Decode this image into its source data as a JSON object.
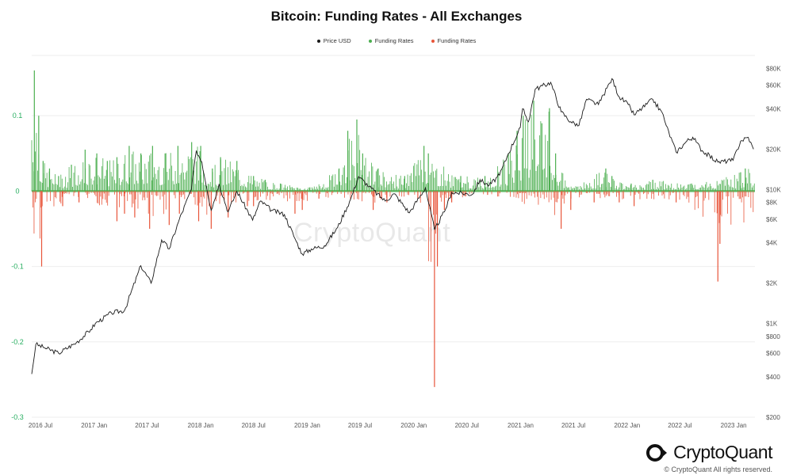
{
  "colors": {
    "price": "#1a1a1a",
    "positive": "#4caf50",
    "negative": "#e8553a",
    "grid": "#eeeeee",
    "leftTick": "#27ae60",
    "rightTick": "#555555"
  },
  "brand": {
    "name": "CryptoQuant",
    "copyright": "© CryptoQuant All rights reserved.",
    "watermark": "CryptoQuant",
    "icon": "cryptoquant-logo-icon"
  },
  "chart_data": {
    "type": "line",
    "title": "Bitcoin: Funding Rates - All Exchanges",
    "legend": {
      "placement": "top-center",
      "entries": [
        {
          "name": "Price USD",
          "color": "#1a1a1a"
        },
        {
          "name": "Funding Rates",
          "color": "#4caf50"
        },
        {
          "name": "Funding Rates",
          "color": "#e8553a"
        }
      ]
    },
    "x_ticks": [
      "2016 Jul",
      "2017 Jan",
      "2017 Jul",
      "2018 Jan",
      "2018 Jul",
      "2019 Jan",
      "2019 Jul",
      "2020 Jan",
      "2020 Jul",
      "2021 Jan",
      "2021 Jul",
      "2022 Jan",
      "2022 Jul",
      "2023 Jan"
    ],
    "x_range": [
      "2016-06-01",
      "2023-03-15"
    ],
    "y_left": {
      "ticks": [
        "0.1",
        "0",
        "-0.1",
        "-0.2",
        "-0.3"
      ],
      "values": [
        0.1,
        0,
        -0.1,
        -0.2,
        -0.3
      ],
      "range": [
        -0.3,
        0.18
      ]
    },
    "y_right": {
      "scale": "log",
      "ticks": [
        "$80K",
        "$60K",
        "$40K",
        "$20K",
        "$10K",
        "$8K",
        "$6K",
        "$4K",
        "$2K",
        "$1K",
        "$800",
        "$600",
        "$400",
        "$200"
      ],
      "values": [
        80000,
        60000,
        40000,
        20000,
        10000,
        8000,
        6000,
        4000,
        2000,
        1000,
        800,
        600,
        400,
        200
      ],
      "range": [
        200,
        100000
      ]
    },
    "grid": true,
    "series": [
      {
        "name": "Price USD",
        "axis": "right",
        "points": [
          [
            "2016-06-01",
            420
          ],
          [
            "2016-06-15",
            700
          ],
          [
            "2016-07-15",
            660
          ],
          [
            "2016-09-01",
            600
          ],
          [
            "2016-11-01",
            720
          ],
          [
            "2016-12-20",
            900
          ],
          [
            "2017-01-05",
            1000
          ],
          [
            "2017-03-01",
            1200
          ],
          [
            "2017-04-15",
            1250
          ],
          [
            "2017-06-10",
            2700
          ],
          [
            "2017-07-15",
            2000
          ],
          [
            "2017-08-20",
            4200
          ],
          [
            "2017-09-15",
            3600
          ],
          [
            "2017-10-20",
            6000
          ],
          [
            "2017-11-30",
            10000
          ],
          [
            "2017-12-17",
            19500
          ],
          [
            "2018-01-05",
            16000
          ],
          [
            "2018-02-06",
            7000
          ],
          [
            "2018-03-05",
            11000
          ],
          [
            "2018-04-05",
            6800
          ],
          [
            "2018-05-05",
            9700
          ],
          [
            "2018-06-28",
            5900
          ],
          [
            "2018-07-25",
            8200
          ],
          [
            "2018-09-01",
            7000
          ],
          [
            "2018-10-15",
            6500
          ],
          [
            "2018-11-20",
            4300
          ],
          [
            "2018-12-15",
            3300
          ],
          [
            "2019-01-15",
            3600
          ],
          [
            "2019-03-01",
            3800
          ],
          [
            "2019-04-15",
            5200
          ],
          [
            "2019-05-30",
            8500
          ],
          [
            "2019-06-26",
            12500
          ],
          [
            "2019-08-01",
            10500
          ],
          [
            "2019-09-25",
            8200
          ],
          [
            "2019-10-26",
            9300
          ],
          [
            "2019-12-17",
            6700
          ],
          [
            "2020-02-10",
            10300
          ],
          [
            "2020-03-12",
            5000
          ],
          [
            "2020-04-15",
            6800
          ],
          [
            "2020-05-10",
            9500
          ],
          [
            "2020-07-20",
            9200
          ],
          [
            "2020-08-15",
            11800
          ],
          [
            "2020-09-15",
            10700
          ],
          [
            "2020-10-21",
            12800
          ],
          [
            "2020-11-20",
            18500
          ],
          [
            "2020-12-31",
            29000
          ],
          [
            "2021-01-08",
            40000
          ],
          [
            "2021-01-28",
            32000
          ],
          [
            "2021-02-20",
            56000
          ],
          [
            "2021-04-14",
            63000
          ],
          [
            "2021-05-20",
            38000
          ],
          [
            "2021-06-22",
            32000
          ],
          [
            "2021-07-20",
            30000
          ],
          [
            "2021-08-15",
            47000
          ],
          [
            "2021-09-25",
            43000
          ],
          [
            "2021-11-10",
            67000
          ],
          [
            "2021-12-05",
            49000
          ],
          [
            "2022-01-05",
            43000
          ],
          [
            "2022-01-25",
            36000
          ],
          [
            "2022-03-30",
            47000
          ],
          [
            "2022-05-05",
            36000
          ],
          [
            "2022-05-15",
            30000
          ],
          [
            "2022-06-18",
            19000
          ],
          [
            "2022-07-25",
            23000
          ],
          [
            "2022-08-14",
            24500
          ],
          [
            "2022-09-15",
            19500
          ],
          [
            "2022-11-08",
            16000
          ],
          [
            "2022-12-30",
            16500
          ],
          [
            "2023-01-25",
            23000
          ],
          [
            "2023-02-20",
            24500
          ],
          [
            "2023-03-10",
            20000
          ]
        ]
      },
      {
        "name": "Funding Rates",
        "axis": "left",
        "sign": "positive",
        "points": [
          [
            "2016-06-10",
            0.16
          ],
          [
            "2016-06-25",
            0.1
          ],
          [
            "2016-07-10",
            0.04
          ],
          [
            "2016-08-01",
            0.03
          ],
          [
            "2016-09-01",
            0.02
          ],
          [
            "2016-10-15",
            0.035
          ],
          [
            "2016-12-01",
            0.055
          ],
          [
            "2017-01-10",
            0.05
          ],
          [
            "2017-02-15",
            0.04
          ],
          [
            "2017-03-20",
            0.045
          ],
          [
            "2017-05-01",
            0.06
          ],
          [
            "2017-06-10",
            0.05
          ],
          [
            "2017-07-20",
            0.06
          ],
          [
            "2017-09-01",
            0.05
          ],
          [
            "2017-10-15",
            0.06
          ],
          [
            "2017-12-01",
            0.065
          ],
          [
            "2018-01-01",
            0.06
          ],
          [
            "2018-02-10",
            0.03
          ],
          [
            "2018-03-10",
            0.045
          ],
          [
            "2018-05-05",
            0.04
          ],
          [
            "2018-07-01",
            0.02
          ],
          [
            "2018-08-10",
            0.015
          ],
          [
            "2018-10-01",
            0.01
          ],
          [
            "2019-01-10",
            0.005
          ],
          [
            "2019-04-20",
            0.03
          ],
          [
            "2019-05-20",
            0.08
          ],
          [
            "2019-06-20",
            0.095
          ],
          [
            "2019-07-10",
            0.05
          ],
          [
            "2019-09-01",
            0.03
          ],
          [
            "2019-12-01",
            0.02
          ],
          [
            "2020-02-05",
            0.06
          ],
          [
            "2020-02-20",
            0.05
          ],
          [
            "2020-06-10",
            0.02
          ],
          [
            "2020-09-01",
            0.02
          ],
          [
            "2020-11-20",
            0.05
          ],
          [
            "2020-12-20",
            0.08
          ],
          [
            "2021-01-10",
            0.1
          ],
          [
            "2021-02-15",
            0.12
          ],
          [
            "2021-03-15",
            0.09
          ],
          [
            "2021-04-10",
            0.11
          ],
          [
            "2021-05-01",
            0.05
          ],
          [
            "2021-06-15",
            0.005
          ],
          [
            "2021-10-20",
            0.03
          ],
          [
            "2021-11-10",
            0.02
          ],
          [
            "2022-01-15",
            0.01
          ],
          [
            "2022-03-30",
            0.015
          ],
          [
            "2022-08-10",
            0.01
          ],
          [
            "2023-01-25",
            0.025
          ],
          [
            "2023-02-10",
            0.03
          ]
        ]
      },
      {
        "name": "Funding Rates",
        "axis": "left",
        "sign": "negative",
        "points": [
          [
            "2016-07-05",
            -0.1
          ],
          [
            "2016-09-15",
            -0.02
          ],
          [
            "2016-11-10",
            -0.015
          ],
          [
            "2017-03-20",
            -0.04
          ],
          [
            "2017-04-15",
            -0.03
          ],
          [
            "2017-05-20",
            -0.035
          ],
          [
            "2017-07-10",
            -0.05
          ],
          [
            "2017-09-15",
            -0.045
          ],
          [
            "2017-10-20",
            -0.03
          ],
          [
            "2017-12-25",
            -0.04
          ],
          [
            "2018-02-06",
            -0.05
          ],
          [
            "2018-04-05",
            -0.035
          ],
          [
            "2018-06-10",
            -0.02
          ],
          [
            "2018-07-01",
            -0.02
          ],
          [
            "2018-11-20",
            -0.03
          ],
          [
            "2018-12-15",
            -0.025
          ],
          [
            "2019-02-10",
            -0.01
          ],
          [
            "2019-08-15",
            -0.025
          ],
          [
            "2019-10-01",
            -0.015
          ],
          [
            "2020-01-15",
            -0.01
          ],
          [
            "2020-03-12",
            -0.26
          ],
          [
            "2020-03-22",
            -0.1
          ],
          [
            "2020-04-15",
            -0.025
          ],
          [
            "2020-05-10",
            -0.015
          ],
          [
            "2020-09-10",
            -0.005
          ],
          [
            "2021-05-20",
            -0.05
          ],
          [
            "2021-06-22",
            -0.025
          ],
          [
            "2021-09-10",
            -0.015
          ],
          [
            "2021-12-05",
            -0.015
          ],
          [
            "2022-01-25",
            -0.02
          ],
          [
            "2022-06-18",
            -0.015
          ],
          [
            "2022-11-08",
            -0.12
          ],
          [
            "2022-11-15",
            -0.07
          ]
        ]
      }
    ]
  }
}
